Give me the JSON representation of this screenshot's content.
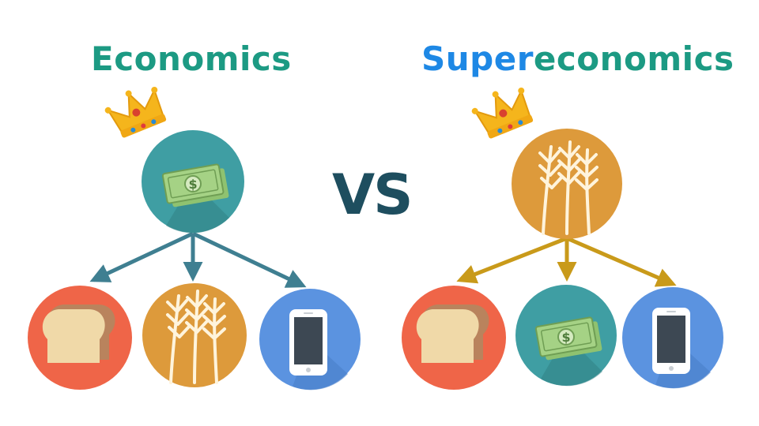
{
  "left": {
    "title": "Economics"
  },
  "right": {
    "title_part1": "Super",
    "title_part2": "economics"
  },
  "vs_label": "VS",
  "colors": {
    "teal_title": "#1c9a83",
    "blue_title": "#1e88e5",
    "vs_text": "#1e4e5f",
    "left_arrows": "#3f7f91",
    "right_arrows": "#c99a1a",
    "bread_circle": "#ef6548",
    "money_circle": "#3f9ea3",
    "wheat_circle": "#dd9a3b",
    "phone_circle": "#5b93e0"
  },
  "icons": {
    "left_top": "money-icon",
    "left_children": [
      "bread-icon",
      "wheat-icon",
      "phone-icon"
    ],
    "right_top": "wheat-icon",
    "right_children": [
      "bread-icon",
      "money-icon",
      "phone-icon"
    ],
    "crown": "crown-icon"
  }
}
